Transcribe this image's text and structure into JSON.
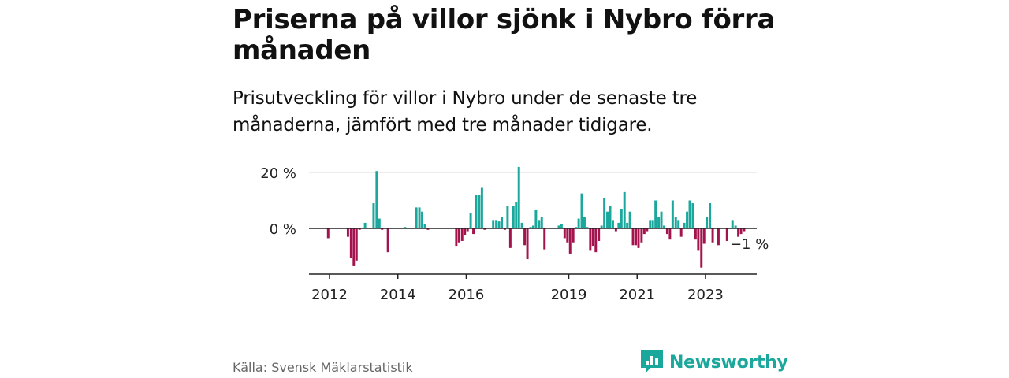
{
  "title": "Priserna på villor sjönk i Nybro förra månaden",
  "subtitle": "Prisutveckling för villor i Nybro under de senaste tre månaderna, jämfört med tre månader tidigare.",
  "source": "Källa: Svensk Mäklarstatistik",
  "brand": {
    "name": "Newsworthy",
    "icon": "newsworthy-logo-icon"
  },
  "colors": {
    "positive": "#1aa79c",
    "negative": "#a3134d",
    "axis": "#222222",
    "grid": "#d9d9d9",
    "brand": "#1aa79c"
  },
  "chart_data": {
    "type": "bar",
    "title": "",
    "xlabel": "",
    "ylabel": "",
    "x_range": [
      2011.4,
      2024.5
    ],
    "ylim": [
      -16,
      22
    ],
    "yticks": [
      {
        "value": 20,
        "label": "20 %"
      },
      {
        "value": 0,
        "label": "0 %"
      }
    ],
    "xticks": [
      {
        "value": 2012,
        "label": "2012"
      },
      {
        "value": 2014,
        "label": "2014"
      },
      {
        "value": 2016,
        "label": "2016"
      },
      {
        "value": 2019,
        "label": "2019"
      },
      {
        "value": 2021,
        "label": "2021"
      },
      {
        "value": 2023,
        "label": "2023"
      }
    ],
    "last_value_label": "−1 %",
    "series": [
      {
        "name": "Prisutveckling, villor i Nybro",
        "points": [
          [
            2011.96,
            -3.5
          ],
          [
            2012.54,
            -3
          ],
          [
            2012.63,
            -10.5
          ],
          [
            2012.71,
            -13.5
          ],
          [
            2012.79,
            -11.5
          ],
          [
            2012.88,
            -0.5
          ],
          [
            2013.04,
            2
          ],
          [
            2013.29,
            9
          ],
          [
            2013.38,
            20.5
          ],
          [
            2013.46,
            3.5
          ],
          [
            2013.54,
            -0.5
          ],
          [
            2013.71,
            -8.5
          ],
          [
            2014.21,
            0.5
          ],
          [
            2014.54,
            7.5
          ],
          [
            2014.63,
            7.5
          ],
          [
            2014.71,
            6
          ],
          [
            2014.79,
            1.5
          ],
          [
            2014.88,
            -0.5
          ],
          [
            2015.71,
            -6.5
          ],
          [
            2015.79,
            -5
          ],
          [
            2015.88,
            -4.5
          ],
          [
            2015.96,
            -2.5
          ],
          [
            2016.04,
            -1
          ],
          [
            2016.13,
            5.5
          ],
          [
            2016.21,
            -2
          ],
          [
            2016.29,
            12
          ],
          [
            2016.38,
            12
          ],
          [
            2016.46,
            14.5
          ],
          [
            2016.54,
            -0.5
          ],
          [
            2016.79,
            3
          ],
          [
            2016.88,
            3
          ],
          [
            2016.96,
            2.5
          ],
          [
            2017.04,
            4
          ],
          [
            2017.13,
            -0.5
          ],
          [
            2017.21,
            8
          ],
          [
            2017.29,
            -7
          ],
          [
            2017.38,
            8
          ],
          [
            2017.46,
            9.5
          ],
          [
            2017.54,
            22
          ],
          [
            2017.63,
            2
          ],
          [
            2017.71,
            -6
          ],
          [
            2017.79,
            -11
          ],
          [
            2017.88,
            0.5
          ],
          [
            2017.96,
            1
          ],
          [
            2018.04,
            6.5
          ],
          [
            2018.13,
            3
          ],
          [
            2018.21,
            4
          ],
          [
            2018.29,
            -7.5
          ],
          [
            2018.71,
            1
          ],
          [
            2018.79,
            1.5
          ],
          [
            2018.88,
            -3.5
          ],
          [
            2018.96,
            -5
          ],
          [
            2019.04,
            -9
          ],
          [
            2019.13,
            -5
          ],
          [
            2019.21,
            0.5
          ],
          [
            2019.29,
            3.5
          ],
          [
            2019.38,
            12.5
          ],
          [
            2019.46,
            4
          ],
          [
            2019.54,
            0.5
          ],
          [
            2019.63,
            -8
          ],
          [
            2019.71,
            -6.5
          ],
          [
            2019.79,
            -8.5
          ],
          [
            2019.88,
            -4.5
          ],
          [
            2019.96,
            1
          ],
          [
            2020.04,
            11
          ],
          [
            2020.13,
            6
          ],
          [
            2020.21,
            8
          ],
          [
            2020.29,
            3
          ],
          [
            2020.38,
            -1
          ],
          [
            2020.46,
            2
          ],
          [
            2020.54,
            7
          ],
          [
            2020.63,
            13
          ],
          [
            2020.71,
            2
          ],
          [
            2020.79,
            6
          ],
          [
            2020.88,
            -6
          ],
          [
            2020.96,
            -6
          ],
          [
            2021.04,
            -7
          ],
          [
            2021.13,
            -5
          ],
          [
            2021.21,
            -2
          ],
          [
            2021.29,
            -1
          ],
          [
            2021.38,
            3
          ],
          [
            2021.46,
            3
          ],
          [
            2021.54,
            10
          ],
          [
            2021.63,
            4
          ],
          [
            2021.71,
            6
          ],
          [
            2021.79,
            1
          ],
          [
            2021.88,
            -2
          ],
          [
            2021.96,
            -4
          ],
          [
            2022.04,
            10
          ],
          [
            2022.13,
            4
          ],
          [
            2022.21,
            3
          ],
          [
            2022.29,
            -3
          ],
          [
            2022.38,
            2
          ],
          [
            2022.46,
            6
          ],
          [
            2022.54,
            10
          ],
          [
            2022.63,
            9
          ],
          [
            2022.71,
            -4
          ],
          [
            2022.79,
            -8
          ],
          [
            2022.88,
            -14
          ],
          [
            2022.96,
            -5.5
          ],
          [
            2023.04,
            4
          ],
          [
            2023.13,
            9
          ],
          [
            2023.21,
            -5
          ],
          [
            2023.38,
            -6
          ],
          [
            2023.63,
            -4.5
          ],
          [
            2023.79,
            3
          ],
          [
            2023.88,
            1
          ],
          [
            2023.96,
            -3
          ],
          [
            2024.04,
            -2
          ],
          [
            2024.13,
            -1
          ]
        ]
      }
    ]
  }
}
